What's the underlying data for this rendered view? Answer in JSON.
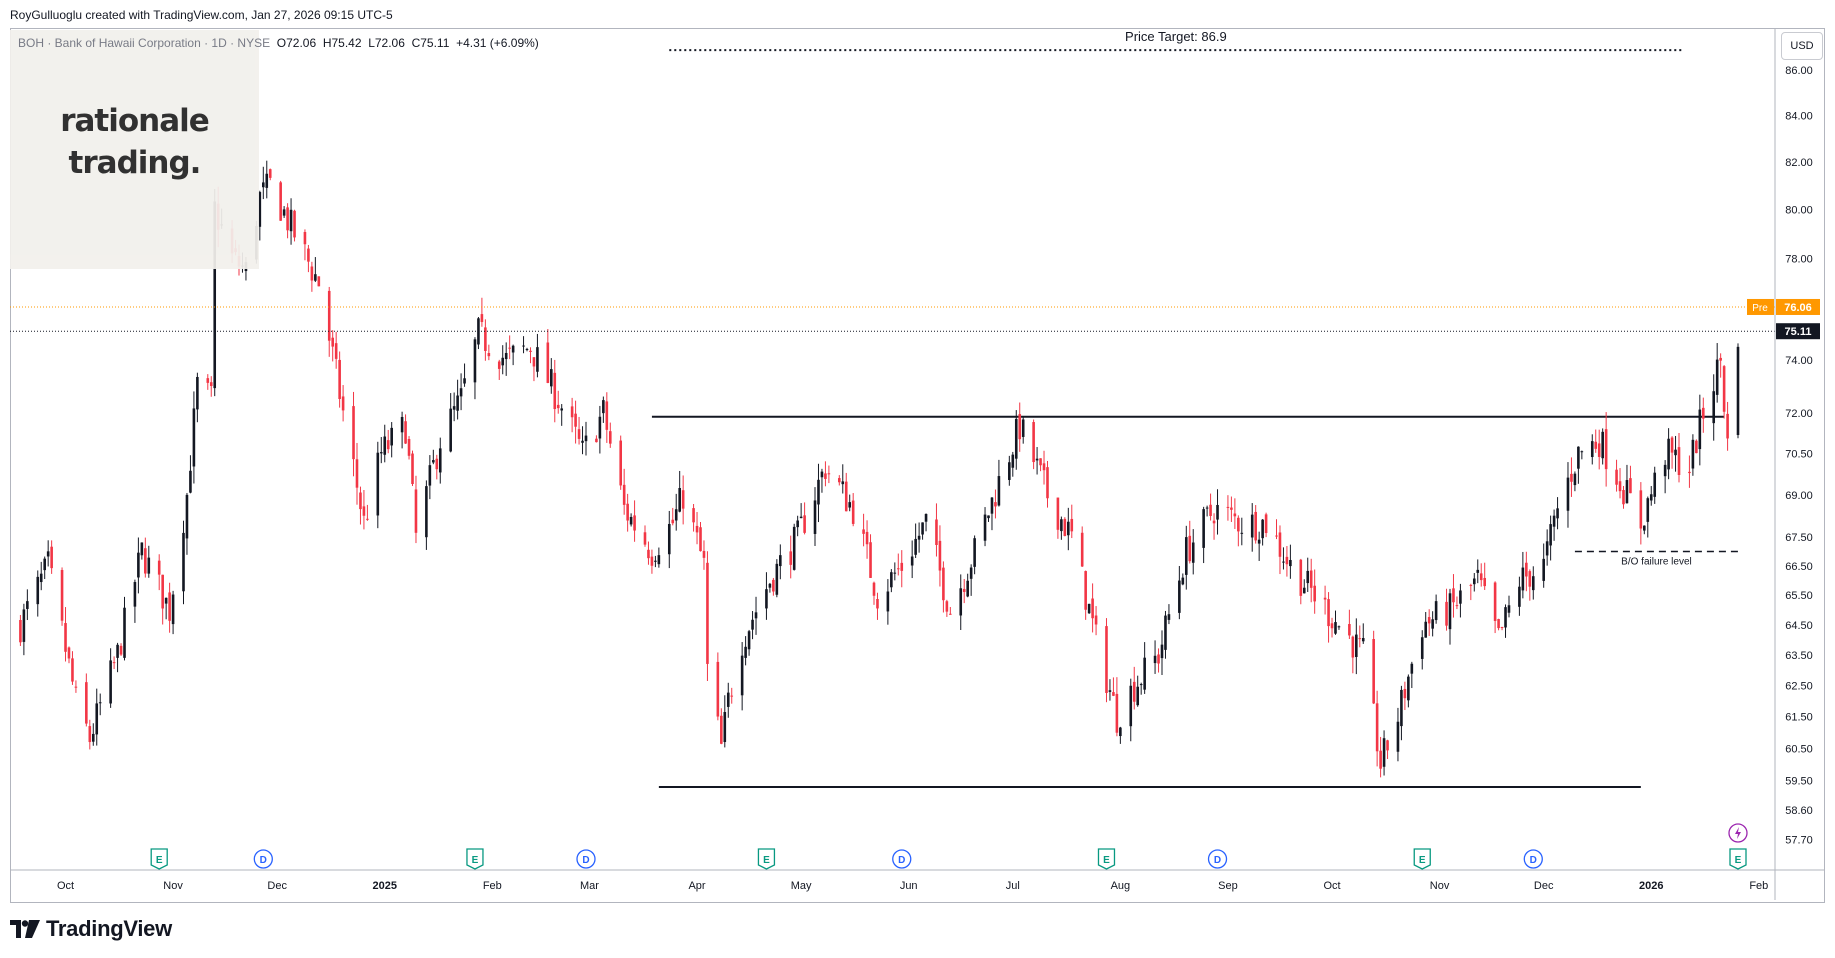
{
  "header": {
    "credit": "RoyGulluoglu created with TradingView.com, Jan 27, 2026 09:15 UTC-5"
  },
  "symbol": {
    "name": "BOH · Bank of Hawaii Corporation · 1D · NYSE",
    "open_label": "O",
    "open": "72.06",
    "high_label": "H",
    "high": "75.42",
    "low_label": "L",
    "low": "72.06",
    "close_label": "C",
    "close": "75.11",
    "change": "+4.31 (+6.09%)"
  },
  "watermark": {
    "line1": "rationale",
    "line2": "trading."
  },
  "currency": "USD",
  "footer": {
    "brand": "TradingView"
  },
  "colors": {
    "up": "#131722",
    "down": "#f23645",
    "pre": "#ff9800",
    "event_earnings": "#089981",
    "event_dividend": "#2962ff",
    "event_split": "#9c27b0"
  },
  "chart_data": {
    "type": "candlestick",
    "title": "BOH · Bank of Hawaii Corporation · 1D · NYSE",
    "xlabel": "",
    "ylabel": "USD",
    "ylim": [
      56.8,
      87.9
    ],
    "y_ticks": [
      "86.00",
      "84.00",
      "82.00",
      "80.00",
      "78.00",
      "76.00",
      "74.00",
      "72.00",
      "70.50",
      "69.00",
      "67.50",
      "66.50",
      "65.50",
      "64.50",
      "63.50",
      "62.50",
      "61.50",
      "60.50",
      "59.50",
      "58.60",
      "57.70"
    ],
    "x_ticks": [
      "Oct",
      "Nov",
      "Dec",
      "2025",
      "Feb",
      "Mar",
      "Apr",
      "May",
      "Jun",
      "Jul",
      "Aug",
      "Sep",
      "Oct",
      "Nov",
      "Dec",
      "2026",
      "Feb"
    ],
    "scale": "log",
    "last_price": {
      "label": "75.11",
      "value": 75.11
    },
    "pre_market": {
      "tag": "Pre",
      "label": "76.06",
      "value": 76.06
    },
    "annotations": [
      {
        "text": "Price Target: 86.9",
        "value": 86.9,
        "style": "dotted"
      },
      {
        "text": "B/O failure level",
        "value": 67.0,
        "style": "dashed"
      }
    ],
    "horizontal_levels": [
      {
        "name": "resistance",
        "value": 71.85,
        "from": "2025-03-19",
        "to": "2026-01-22"
      },
      {
        "name": "support",
        "value": 59.3,
        "from": "2025-03-21",
        "to": "2025-12-29"
      }
    ],
    "anchors": [
      [
        "2024-09-18",
        64.5
      ],
      [
        "2024-09-26",
        66.5
      ],
      [
        "2024-10-04",
        62.0
      ],
      [
        "2024-10-08",
        60.8
      ],
      [
        "2024-10-16",
        63.5
      ],
      [
        "2024-10-23",
        67.0
      ],
      [
        "2024-10-31",
        65.0
      ],
      [
        "2024-11-05",
        69.0
      ],
      [
        "2024-11-08",
        73.0
      ],
      [
        "2024-11-12",
        72.5
      ],
      [
        "2024-11-13",
        80.0
      ],
      [
        "2024-11-18",
        78.0
      ],
      [
        "2024-11-22",
        77.5
      ],
      [
        "2024-11-26",
        80.5
      ],
      [
        "2024-11-29",
        81.0
      ],
      [
        "2024-12-06",
        79.0
      ],
      [
        "2024-12-13",
        77.0
      ],
      [
        "2024-12-20",
        72.0
      ],
      [
        "2024-12-26",
        68.0
      ],
      [
        "2024-12-31",
        70.5
      ],
      [
        "2025-01-07",
        71.5
      ],
      [
        "2025-01-10",
        67.5
      ],
      [
        "2025-01-17",
        71.0
      ],
      [
        "2025-01-23",
        72.5
      ],
      [
        "2025-01-28",
        75.0
      ],
      [
        "2025-02-05",
        74.0
      ],
      [
        "2025-02-12",
        74.5
      ],
      [
        "2025-02-20",
        72.5
      ],
      [
        "2025-02-27",
        70.5
      ],
      [
        "2025-03-05",
        72.0
      ],
      [
        "2025-03-11",
        68.5
      ],
      [
        "2025-03-19",
        67.0
      ],
      [
        "2025-03-25",
        68.0
      ],
      [
        "2025-03-28",
        69.0
      ],
      [
        "2025-04-03",
        66.5
      ],
      [
        "2025-04-04",
        63.0
      ],
      [
        "2025-04-08",
        60.5
      ],
      [
        "2025-04-10",
        62.0
      ],
      [
        "2025-04-14",
        64.0
      ],
      [
        "2025-04-22",
        66.0
      ],
      [
        "2025-04-30",
        67.5
      ],
      [
        "2025-05-08",
        70.0
      ],
      [
        "2025-05-16",
        68.5
      ],
      [
        "2025-05-23",
        65.5
      ],
      [
        "2025-05-30",
        66.5
      ],
      [
        "2025-06-06",
        68.0
      ],
      [
        "2025-06-13",
        65.0
      ],
      [
        "2025-06-20",
        67.0
      ],
      [
        "2025-06-30",
        70.5
      ],
      [
        "2025-07-03",
        71.5
      ],
      [
        "2025-07-11",
        69.0
      ],
      [
        "2025-07-18",
        67.5
      ],
      [
        "2025-07-25",
        64.0
      ],
      [
        "2025-07-31",
        61.5
      ],
      [
        "2025-08-05",
        62.5
      ],
      [
        "2025-08-12",
        63.5
      ],
      [
        "2025-08-20",
        67.0
      ],
      [
        "2025-08-28",
        68.5
      ],
      [
        "2025-09-05",
        68.0
      ],
      [
        "2025-09-12",
        68.0
      ],
      [
        "2025-09-19",
        66.5
      ],
      [
        "2025-09-26",
        65.5
      ],
      [
        "2025-10-03",
        64.5
      ],
      [
        "2025-10-10",
        63.5
      ],
      [
        "2025-10-15",
        60.0
      ],
      [
        "2025-10-20",
        61.5
      ],
      [
        "2025-10-27",
        64.5
      ],
      [
        "2025-11-04",
        65.0
      ],
      [
        "2025-11-12",
        66.0
      ],
      [
        "2025-11-18",
        64.0
      ],
      [
        "2025-11-24",
        66.0
      ],
      [
        "2025-12-01",
        66.5
      ],
      [
        "2025-12-05",
        68.5
      ],
      [
        "2025-12-11",
        70.5
      ],
      [
        "2025-12-17",
        71.0
      ],
      [
        "2025-12-23",
        69.5
      ],
      [
        "2025-12-29",
        68.0
      ],
      [
        "2026-01-05",
        70.5
      ],
      [
        "2026-01-12",
        70.0
      ],
      [
        "2026-01-16",
        72.0
      ],
      [
        "2026-01-21",
        74.0
      ],
      [
        "2026-01-23",
        70.8
      ],
      [
        "2026-01-26",
        75.11
      ]
    ],
    "events": [
      {
        "type": "E",
        "date": "2024-10-28"
      },
      {
        "type": "D",
        "date": "2024-11-27"
      },
      {
        "type": "E",
        "date": "2025-01-27"
      },
      {
        "type": "D",
        "date": "2025-02-28"
      },
      {
        "type": "E",
        "date": "2025-04-21"
      },
      {
        "type": "D",
        "date": "2025-05-30"
      },
      {
        "type": "E",
        "date": "2025-07-28"
      },
      {
        "type": "D",
        "date": "2025-08-29"
      },
      {
        "type": "E",
        "date": "2025-10-27"
      },
      {
        "type": "D",
        "date": "2025-11-28"
      },
      {
        "type": "E",
        "date": "2026-01-26"
      }
    ],
    "split_marker": {
      "date": "2026-01-26"
    }
  }
}
